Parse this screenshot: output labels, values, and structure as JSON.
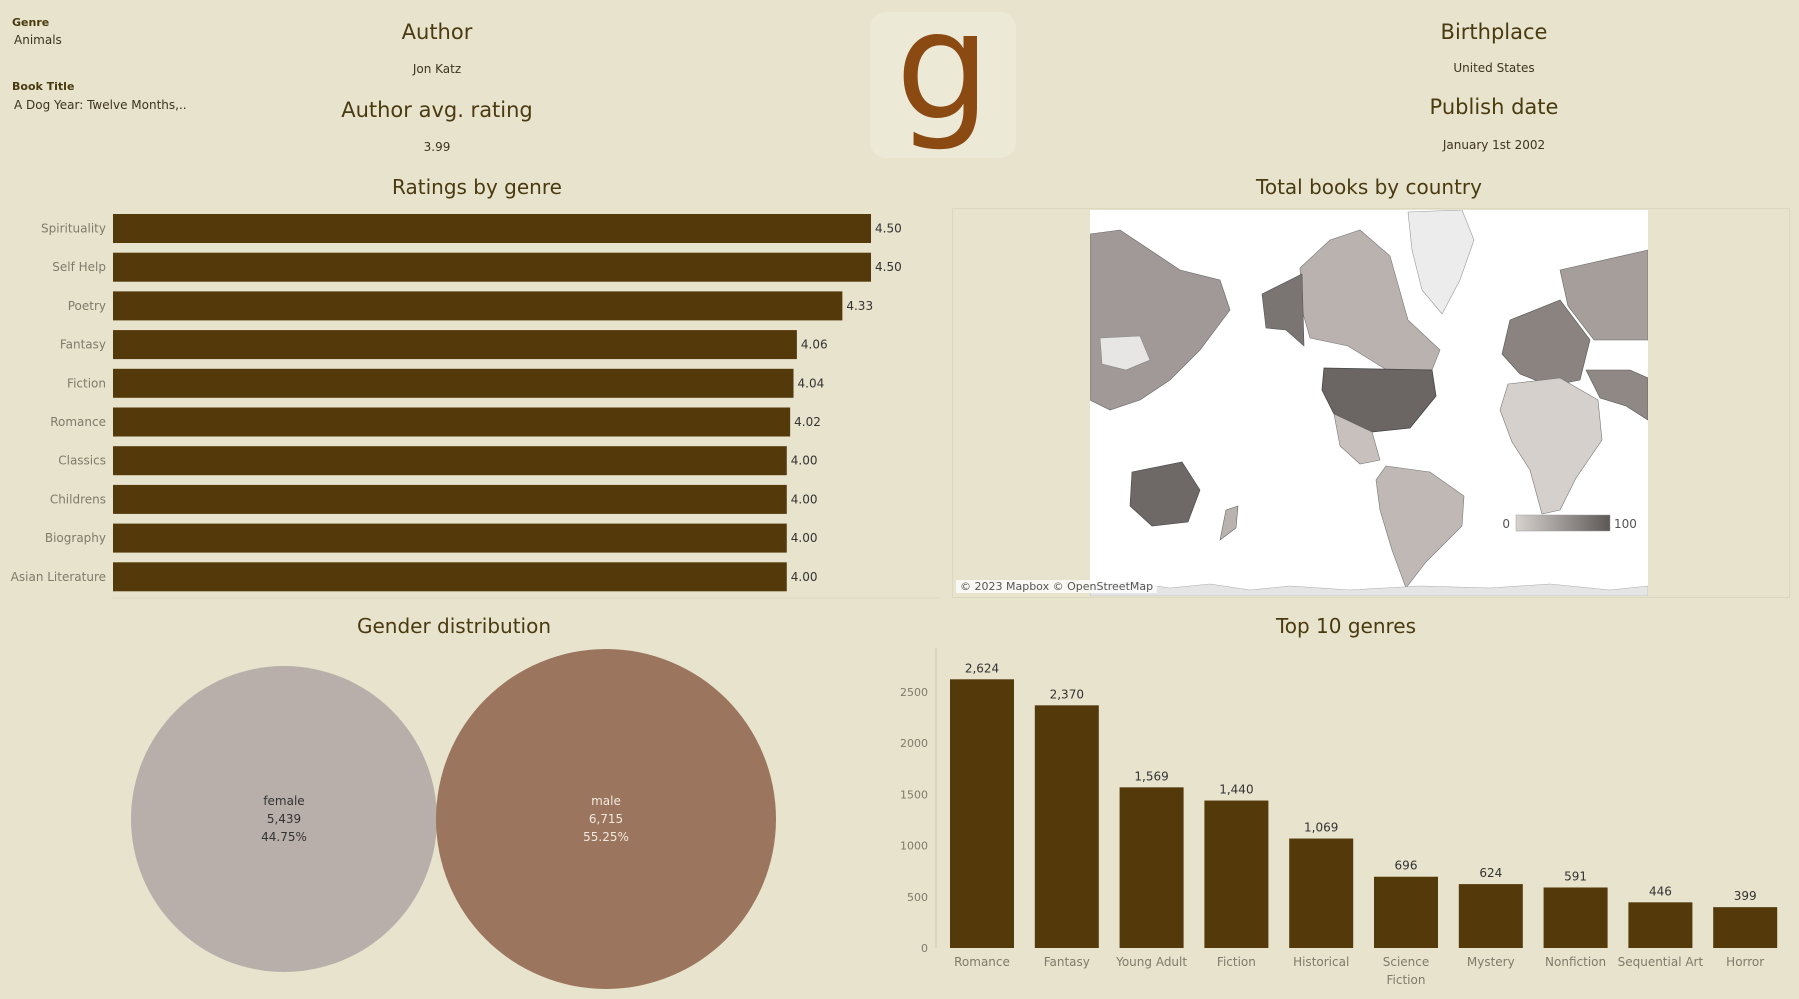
{
  "filters": {
    "genre_label": "Genre",
    "genre_value": "Animals",
    "title_label": "Book Title",
    "title_value": "A Dog Year: Twelve Months,.."
  },
  "kpis": {
    "author_label": "Author",
    "author_value": "Jon Katz",
    "avg_rating_label": "Author avg. rating",
    "avg_rating_value": "3.99",
    "birthplace_label": "Birthplace",
    "birthplace_value": "United States",
    "publish_label": "Publish date",
    "publish_value": "January 1st 2002"
  },
  "logo": {
    "letter": "g"
  },
  "colors": {
    "background": "#e8e3cd",
    "bar": "#543a0b",
    "female": "#b8afaa",
    "male": "#9b755d",
    "title": "#4a3a10"
  },
  "map": {
    "title": "Total books by country",
    "attribution": "© 2023 Mapbox © OpenStreetMap",
    "legend_min": "0",
    "legend_max": "100"
  },
  "chart_data": [
    {
      "type": "bar",
      "orientation": "horizontal",
      "title": "Ratings by genre",
      "categories": [
        "Spirituality",
        "Self Help",
        "Poetry",
        "Fantasy",
        "Fiction",
        "Romance",
        "Classics",
        "Childrens",
        "Biography",
        "Asian Literature"
      ],
      "values": [
        4.5,
        4.5,
        4.33,
        4.06,
        4.04,
        4.02,
        4.0,
        4.0,
        4.0,
        4.0
      ],
      "labels": [
        "4.50",
        "4.50",
        "4.33",
        "4.06",
        "4.04",
        "4.02",
        "4.00",
        "4.00",
        "4.00",
        "4.00"
      ],
      "xlim": [
        0,
        4.5
      ]
    },
    {
      "type": "bubble",
      "title": "Gender distribution",
      "categories": [
        "female",
        "male"
      ],
      "values": [
        5439,
        6715
      ],
      "value_labels": [
        "5,439",
        "6,715"
      ],
      "percent_labels": [
        "44.75%",
        "55.25%"
      ]
    },
    {
      "type": "bar",
      "orientation": "vertical",
      "title": "Top 10 genres",
      "categories": [
        "Romance",
        "Fantasy",
        "Young Adult",
        "Fiction",
        "Historical",
        "Science Fiction",
        "Mystery",
        "Nonfiction",
        "Sequential Art",
        "Horror"
      ],
      "values": [
        2624,
        2370,
        1569,
        1440,
        1069,
        696,
        624,
        591,
        446,
        399
      ],
      "labels": [
        "2,624",
        "2,370",
        "1,569",
        "1,440",
        "1,069",
        "696",
        "624",
        "591",
        "446",
        "399"
      ],
      "yticks": [
        0,
        500,
        1000,
        1500,
        2000,
        2500
      ],
      "ylim": [
        0,
        2800
      ]
    }
  ]
}
